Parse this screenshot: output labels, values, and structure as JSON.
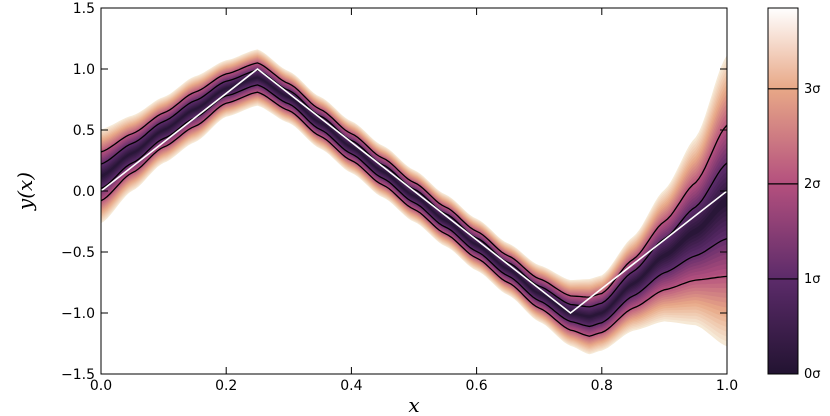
{
  "chart_data": {
    "type": "area",
    "title": "",
    "xlabel": "x",
    "ylabel": "y(x)",
    "xlim": [
      0.0,
      1.0
    ],
    "ylim": [
      -1.5,
      1.5
    ],
    "xticks": [
      "0.0",
      "0.2",
      "0.4",
      "0.6",
      "0.8",
      "1.0"
    ],
    "yticks": [
      "−1.5",
      "−1.0",
      "−0.5",
      "0.0",
      "0.5",
      "1.0",
      "1.5"
    ],
    "grid": false,
    "true_function": {
      "x": [
        0.0,
        0.25,
        0.75,
        1.0
      ],
      "y": [
        0.0,
        1.0,
        -1.0,
        0.0
      ]
    },
    "posterior": {
      "x": [
        0.0,
        0.05,
        0.1,
        0.15,
        0.2,
        0.25,
        0.3,
        0.35,
        0.4,
        0.45,
        0.5,
        0.55,
        0.6,
        0.65,
        0.7,
        0.75,
        0.78,
        0.8,
        0.85,
        0.9,
        0.95,
        1.0
      ],
      "mean": [
        0.12,
        0.31,
        0.5,
        0.67,
        0.84,
        0.93,
        0.77,
        0.56,
        0.36,
        0.16,
        -0.04,
        -0.24,
        -0.44,
        -0.64,
        -0.84,
        -1.0,
        -1.03,
        -1.0,
        -0.76,
        -0.53,
        -0.33,
        -0.08
      ],
      "sigma": [
        0.1,
        0.08,
        0.07,
        0.07,
        0.06,
        0.06,
        0.055,
        0.055,
        0.055,
        0.055,
        0.055,
        0.055,
        0.055,
        0.055,
        0.06,
        0.07,
        0.08,
        0.08,
        0.1,
        0.14,
        0.2,
        0.31
      ]
    },
    "contour_levels_sigma": [
      1,
      2
    ],
    "colorbar": {
      "ticks": [
        "0σ",
        "1σ",
        "2σ",
        "3σ"
      ],
      "max_sigma": 3.85,
      "colormap": "magma_r"
    },
    "colors": {
      "true_line": "#ffffff",
      "contour": "#000000",
      "c0": "#221331",
      "c1": "#5c2b6a",
      "c2": "#b4507e",
      "c3": "#e8a887",
      "c4": "#f6e9d6"
    }
  }
}
